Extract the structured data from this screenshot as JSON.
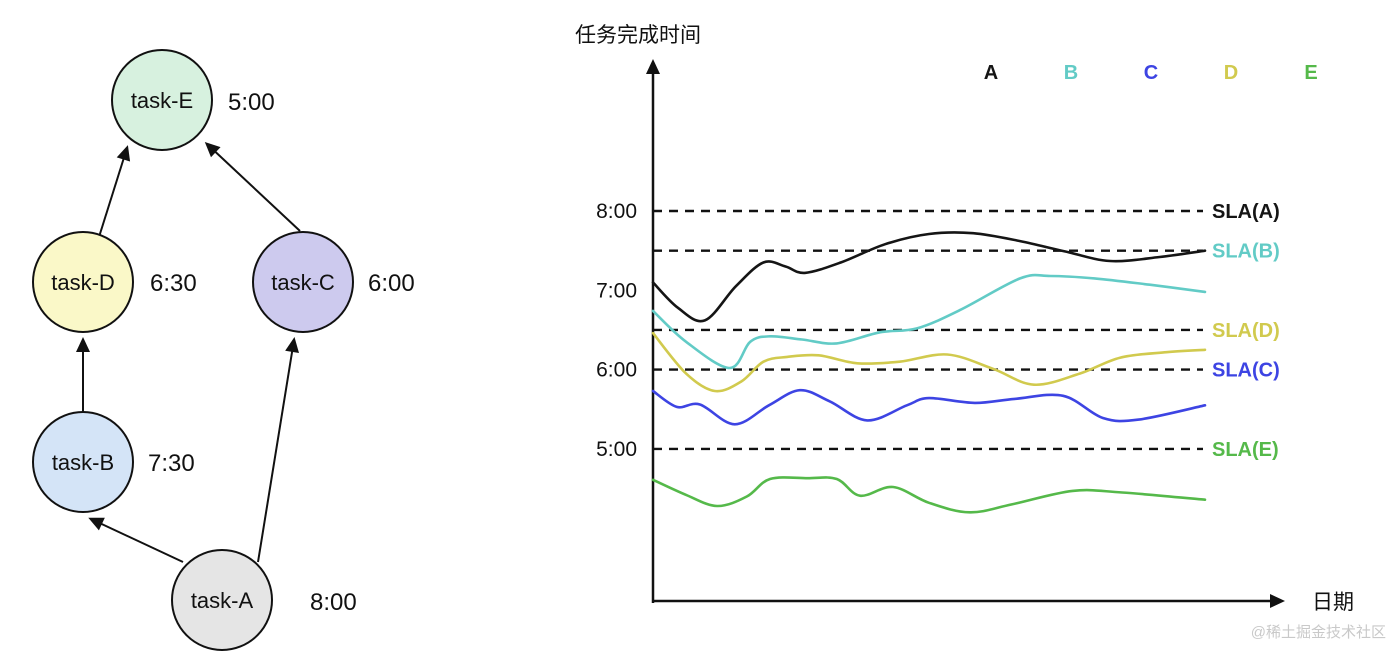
{
  "dag": {
    "description": "Task dependency DAG with SLA completion times",
    "nodes": [
      {
        "id": "task-E",
        "label": "task-E",
        "time": "5:00",
        "color": "#d7f1df"
      },
      {
        "id": "task-D",
        "label": "task-D",
        "time": "6:30",
        "color": "#faf8c8"
      },
      {
        "id": "task-C",
        "label": "task-C",
        "time": "6:00",
        "color": "#cdcaee"
      },
      {
        "id": "task-B",
        "label": "task-B",
        "time": "7:30",
        "color": "#d4e4f7"
      },
      {
        "id": "task-A",
        "label": "task-A",
        "time": "8:00",
        "color": "#e5e5e5"
      }
    ],
    "edges": [
      {
        "from": "task-D",
        "to": "task-E"
      },
      {
        "from": "task-C",
        "to": "task-E"
      },
      {
        "from": "task-B",
        "to": "task-D"
      },
      {
        "from": "task-A",
        "to": "task-B"
      },
      {
        "from": "task-A",
        "to": "task-C"
      }
    ]
  },
  "chart_data": {
    "type": "line",
    "title": "任务完成时间",
    "xlabel": "日期",
    "ylabel": "任务完成时间",
    "x_unit": "relative date position 0..1 (no x tick labels shown)",
    "y_unit": "hours (clock time)",
    "ylim": [
      4.0,
      8.5
    ],
    "grid": "horizontal dashed SLA reference lines only",
    "legend_position": "top-right",
    "yticks": [
      {
        "label": "8:00",
        "value": 8
      },
      {
        "label": "7:00",
        "value": 7
      },
      {
        "label": "6:00",
        "value": 6
      },
      {
        "label": "5:00",
        "value": 5
      }
    ],
    "series": [
      {
        "name": "A",
        "color": "#151515",
        "sla": {
          "label": "SLA(A)",
          "value": 8.0
        },
        "points": [
          [
            0,
            7.1
          ],
          [
            0.045,
            6.78
          ],
          [
            0.094,
            6.62
          ],
          [
            0.15,
            7.05
          ],
          [
            0.2,
            7.35
          ],
          [
            0.24,
            7.3
          ],
          [
            0.275,
            7.22
          ],
          [
            0.34,
            7.35
          ],
          [
            0.42,
            7.58
          ],
          [
            0.5,
            7.71
          ],
          [
            0.58,
            7.72
          ],
          [
            0.665,
            7.62
          ],
          [
            0.746,
            7.49
          ],
          [
            0.828,
            7.37
          ],
          [
            0.918,
            7.42
          ],
          [
            1,
            7.5
          ]
        ]
      },
      {
        "name": "B",
        "color": "#62cbc6",
        "sla": {
          "label": "SLA(B)",
          "value": 7.5
        },
        "points": [
          [
            0,
            6.74
          ],
          [
            0.06,
            6.35
          ],
          [
            0.139,
            6.02
          ],
          [
            0.176,
            6.35
          ],
          [
            0.212,
            6.42
          ],
          [
            0.27,
            6.38
          ],
          [
            0.333,
            6.33
          ],
          [
            0.411,
            6.47
          ],
          [
            0.478,
            6.52
          ],
          [
            0.556,
            6.75
          ],
          [
            0.665,
            7.15
          ],
          [
            0.72,
            7.18
          ],
          [
            0.8,
            7.15
          ],
          [
            0.9,
            7.07
          ],
          [
            1,
            6.98
          ]
        ]
      },
      {
        "name": "C",
        "color": "#3d44e3",
        "sla": {
          "label": "SLA(C)",
          "value": 6.0
        },
        "points": [
          [
            0,
            5.73
          ],
          [
            0.043,
            5.53
          ],
          [
            0.085,
            5.56
          ],
          [
            0.148,
            5.31
          ],
          [
            0.21,
            5.55
          ],
          [
            0.266,
            5.74
          ],
          [
            0.32,
            5.6
          ],
          [
            0.388,
            5.36
          ],
          [
            0.46,
            5.55
          ],
          [
            0.5,
            5.64
          ],
          [
            0.583,
            5.58
          ],
          [
            0.655,
            5.63
          ],
          [
            0.743,
            5.67
          ],
          [
            0.815,
            5.39
          ],
          [
            0.88,
            5.37
          ],
          [
            1,
            5.55
          ]
        ]
      },
      {
        "name": "D",
        "color": "#d1ca4e",
        "sla": {
          "label": "SLA(D)",
          "value": 6.5
        },
        "points": [
          [
            0,
            6.46
          ],
          [
            0.06,
            5.95
          ],
          [
            0.112,
            5.73
          ],
          [
            0.16,
            5.85
          ],
          [
            0.2,
            6.1
          ],
          [
            0.243,
            6.16
          ],
          [
            0.3,
            6.18
          ],
          [
            0.37,
            6.08
          ],
          [
            0.447,
            6.1
          ],
          [
            0.533,
            6.19
          ],
          [
            0.616,
            6.01
          ],
          [
            0.69,
            5.81
          ],
          [
            0.773,
            5.95
          ],
          [
            0.846,
            6.15
          ],
          [
            0.93,
            6.22
          ],
          [
            1,
            6.25
          ]
        ]
      },
      {
        "name": "E",
        "color": "#55b94a",
        "sla": {
          "label": "SLA(E)",
          "value": 5.0
        },
        "points": [
          [
            0,
            4.61
          ],
          [
            0.06,
            4.42
          ],
          [
            0.116,
            4.28
          ],
          [
            0.17,
            4.4
          ],
          [
            0.212,
            4.62
          ],
          [
            0.28,
            4.63
          ],
          [
            0.333,
            4.62
          ],
          [
            0.375,
            4.41
          ],
          [
            0.435,
            4.52
          ],
          [
            0.5,
            4.32
          ],
          [
            0.574,
            4.2
          ],
          [
            0.65,
            4.3
          ],
          [
            0.76,
            4.47
          ],
          [
            0.85,
            4.45
          ],
          [
            1,
            4.36
          ]
        ]
      }
    ]
  },
  "watermark": "@稀土掘金技术社区"
}
